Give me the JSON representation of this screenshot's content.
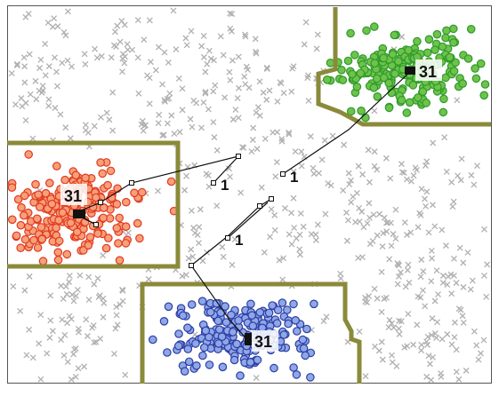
{
  "colors": {
    "boundary": "#8a8a3a",
    "frame": "#555555",
    "noise": "#b0b0b0",
    "path": "#111111",
    "red_fill": "#f6a07a",
    "red_stroke": "#e23a1f",
    "green_fill": "#6fc34a",
    "green_stroke": "#2e9a2c",
    "blue_fill": "#8fa7e6",
    "blue_stroke": "#2d3fa6",
    "label_text": "#111111"
  },
  "labels": {
    "red_cluster": "31",
    "green_cluster": "31",
    "blue_cluster": "31",
    "path_left": "1",
    "path_middle": "1",
    "path_right": "1"
  }
}
